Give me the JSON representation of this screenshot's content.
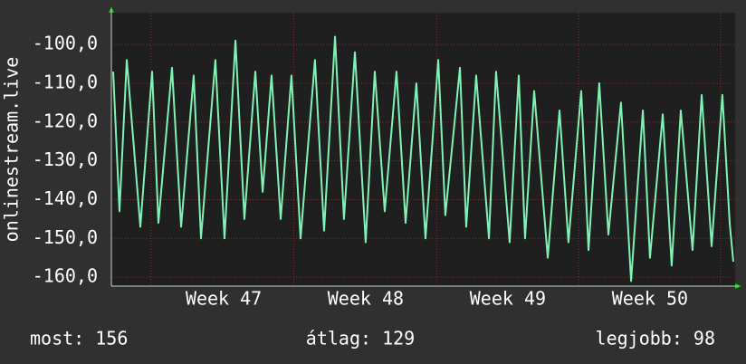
{
  "chart_data": {
    "type": "line",
    "y_label": "onlinestream.live",
    "x": [
      0.09,
      0.4,
      0.76,
      1.43,
      2.01,
      2.32,
      2.99,
      3.44,
      4.06,
      4.42,
      5.13,
      5.58,
      6.12,
      6.56,
      7.1,
      7.46,
      7.9,
      8.35,
      8.88,
      9.33,
      10.04,
      10.49,
      11.03,
      11.47,
      12.01,
      12.54,
      12.99,
      13.48,
      14.06,
      14.51,
      15.04,
      15.49,
      16.12,
      16.47,
      17.19,
      17.5,
      17.99,
      18.62,
      18.97,
      19.64,
      20.09,
      20.4,
      20.85,
      21.52,
      22.1,
      22.54,
      23.17,
      23.53,
      24.06,
      24.51,
      25.13,
      25.63,
      26.21,
      26.56,
      27.19,
      27.63,
      28.08,
      28.66,
      29.11,
      29.6,
      30.13,
      30.49,
      30.67
    ],
    "series": [
      {
        "color": "#7ff2b4",
        "values": [
          -107,
          -143,
          -104,
          -147,
          -107,
          -146,
          -106,
          -147,
          -108,
          -150,
          -104,
          -150,
          -99,
          -145,
          -107,
          -138,
          -108,
          -145,
          -108,
          -150,
          -104,
          -148,
          -98,
          -145,
          -102,
          -151,
          -107,
          -143,
          -107,
          -146,
          -110,
          -150,
          -104,
          -144,
          -106,
          -147,
          -108,
          -150,
          -107,
          -151,
          -108,
          -150,
          -112,
          -155,
          -117,
          -151,
          -112,
          -153,
          -110,
          -149,
          -115,
          -161,
          -117,
          -155,
          -118,
          -157,
          -117,
          -153,
          -113,
          -152,
          -113,
          -146,
          -156
        ]
      }
    ],
    "xlim": [
      0,
      30.76
    ],
    "xticks": [
      {
        "value": 5.54,
        "label": "Week 47"
      },
      {
        "value": 12.54,
        "label": "Week 48"
      },
      {
        "value": 19.55,
        "label": "Week 49"
      },
      {
        "value": 26.56,
        "label": "Week 50"
      }
    ],
    "xgrid": [
      1.96,
      9.0,
      16.04,
      23.04,
      30.04
    ],
    "ylim": [
      -162.3,
      -91.8
    ],
    "yticks": [
      {
        "value": -100,
        "label": "-100,0"
      },
      {
        "value": -110,
        "label": "-110,0"
      },
      {
        "value": -120,
        "label": "-120,0"
      },
      {
        "value": -130,
        "label": "-130,0"
      },
      {
        "value": -140,
        "label": "-140,0"
      },
      {
        "value": -150,
        "label": "-150,0"
      },
      {
        "value": -160,
        "label": "-160,0"
      }
    ],
    "grid": true,
    "footer": {
      "current": "most: 156",
      "average": "átlag: 129",
      "best": "legjobb: 98"
    }
  }
}
